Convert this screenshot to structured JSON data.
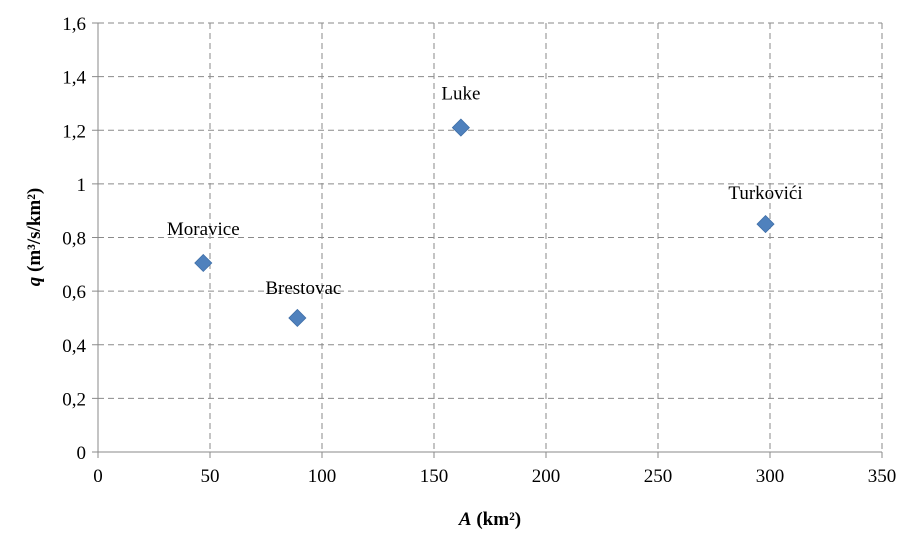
{
  "chart_data": {
    "type": "scatter",
    "title": "",
    "xlabel": {
      "var": "A",
      "unit": "(km²)"
    },
    "ylabel": {
      "var": "q",
      "unit": "(m³/s/km²)"
    },
    "xlim": [
      0,
      350
    ],
    "ylim": [
      0,
      1.6
    ],
    "x_ticks": [
      "0",
      "50",
      "100",
      "150",
      "200",
      "250",
      "300",
      "350"
    ],
    "y_ticks": [
      "0",
      "0,2",
      "0,4",
      "0,6",
      "0,8",
      "1",
      "1,2",
      "1,4",
      "1,6"
    ],
    "grid": true,
    "grid_style": "dashed",
    "marker": "diamond",
    "marker_color": "#4f81bd",
    "points": [
      {
        "label": "Moravice",
        "x": 47,
        "y": 0.705
      },
      {
        "label": "Brestovac",
        "x": 89,
        "y": 0.5
      },
      {
        "label": "Luke",
        "x": 162,
        "y": 1.21
      },
      {
        "label": "Turkovići",
        "x": 298,
        "y": 0.85
      }
    ]
  }
}
